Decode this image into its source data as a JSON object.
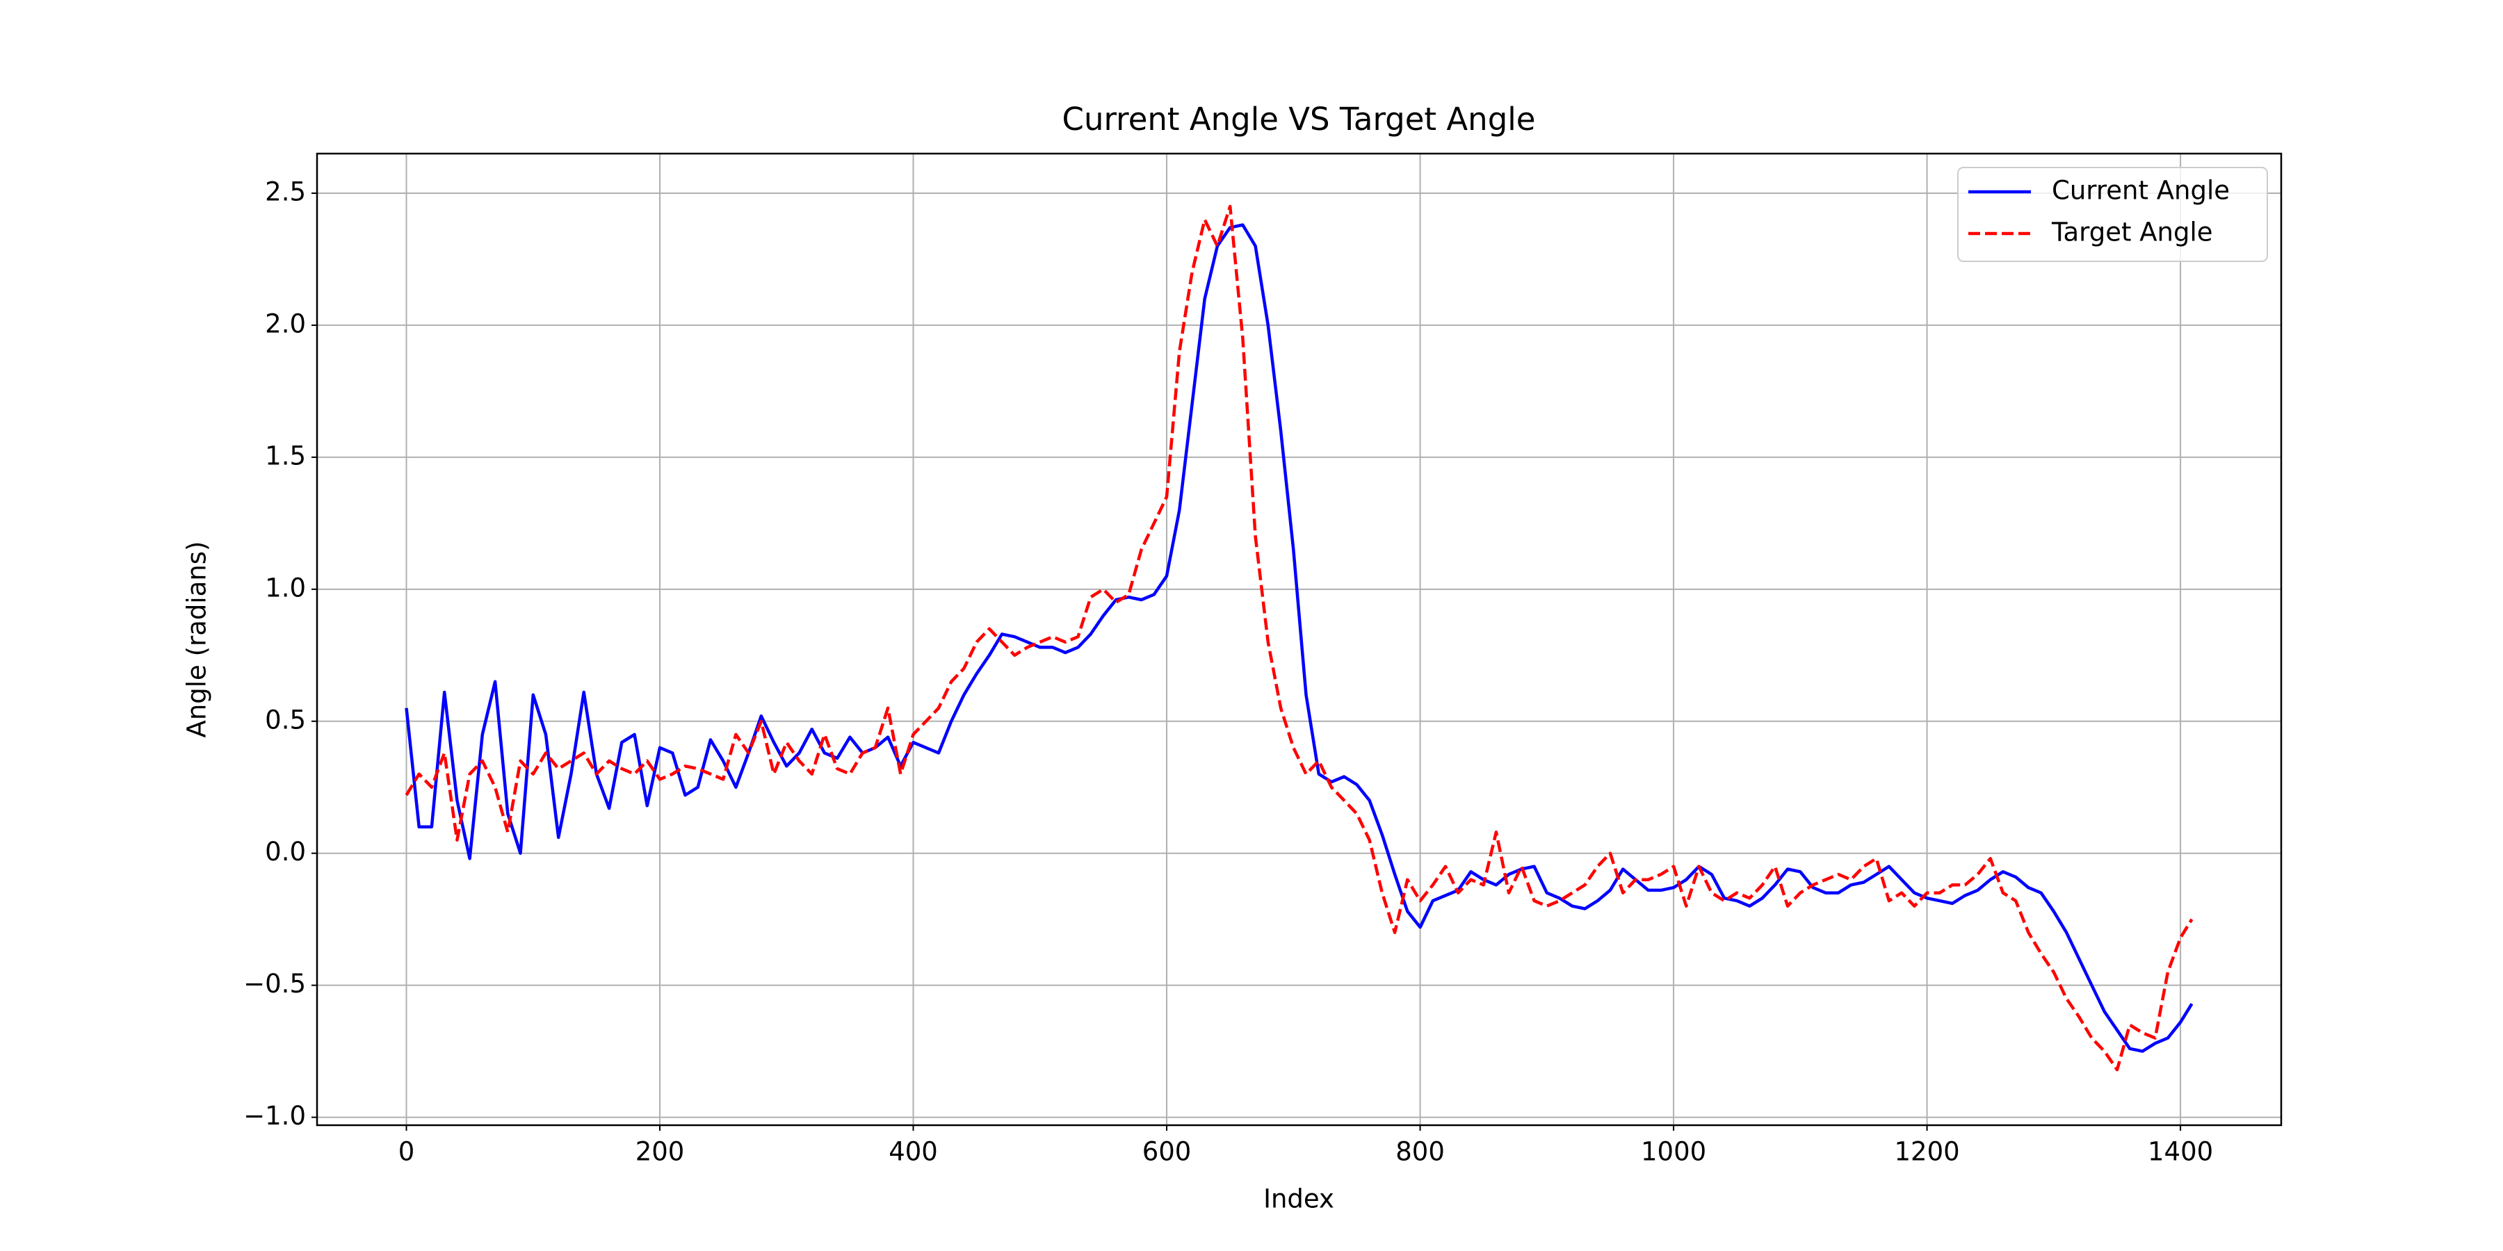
{
  "chart_data": {
    "type": "line",
    "title": "Current Angle VS Target Angle",
    "x_label": "Index",
    "y_label": "Angle (radians)",
    "x": [
      0,
      10,
      20,
      30,
      40,
      50,
      60,
      70,
      80,
      90,
      100,
      110,
      120,
      130,
      140,
      150,
      160,
      170,
      180,
      190,
      200,
      210,
      220,
      230,
      240,
      250,
      260,
      270,
      280,
      290,
      300,
      310,
      320,
      330,
      340,
      350,
      360,
      370,
      380,
      390,
      400,
      410,
      420,
      430,
      440,
      450,
      460,
      470,
      480,
      490,
      500,
      510,
      520,
      530,
      540,
      550,
      560,
      570,
      580,
      590,
      600,
      610,
      620,
      630,
      640,
      650,
      660,
      670,
      680,
      690,
      700,
      710,
      720,
      730,
      740,
      750,
      760,
      770,
      780,
      790,
      800,
      810,
      820,
      830,
      840,
      850,
      860,
      870,
      880,
      890,
      900,
      910,
      920,
      930,
      940,
      950,
      960,
      970,
      980,
      990,
      1000,
      1010,
      1020,
      1030,
      1040,
      1050,
      1060,
      1070,
      1080,
      1090,
      1100,
      1110,
      1120,
      1130,
      1140,
      1150,
      1160,
      1170,
      1180,
      1190,
      1200,
      1210,
      1220,
      1230,
      1240,
      1250,
      1260,
      1270,
      1280,
      1290,
      1300,
      1310,
      1320,
      1330,
      1340,
      1350,
      1360,
      1370,
      1380,
      1390,
      1400,
      1409
    ],
    "series": [
      {
        "name": "Current Angle",
        "color": "#0000ff",
        "dash": "solid",
        "values": [
          0.55,
          0.1,
          0.1,
          0.61,
          0.2,
          -0.02,
          0.45,
          0.65,
          0.15,
          0.0,
          0.6,
          0.45,
          0.06,
          0.3,
          0.61,
          0.3,
          0.17,
          0.42,
          0.45,
          0.18,
          0.4,
          0.38,
          0.22,
          0.25,
          0.43,
          0.35,
          0.25,
          0.38,
          0.52,
          0.42,
          0.33,
          0.38,
          0.47,
          0.38,
          0.36,
          0.44,
          0.38,
          0.4,
          0.44,
          0.33,
          0.42,
          0.4,
          0.38,
          0.5,
          0.6,
          0.68,
          0.75,
          0.83,
          0.82,
          0.8,
          0.78,
          0.78,
          0.76,
          0.78,
          0.83,
          0.9,
          0.96,
          0.97,
          0.96,
          0.98,
          1.05,
          1.3,
          1.7,
          2.1,
          2.3,
          2.37,
          2.38,
          2.3,
          2.0,
          1.6,
          1.15,
          0.6,
          0.3,
          0.27,
          0.29,
          0.26,
          0.2,
          0.07,
          -0.08,
          -0.22,
          -0.28,
          -0.18,
          -0.16,
          -0.14,
          -0.07,
          -0.1,
          -0.12,
          -0.08,
          -0.06,
          -0.05,
          -0.15,
          -0.17,
          -0.2,
          -0.21,
          -0.18,
          -0.14,
          -0.06,
          -0.1,
          -0.14,
          -0.14,
          -0.13,
          -0.1,
          -0.05,
          -0.08,
          -0.17,
          -0.18,
          -0.2,
          -0.17,
          -0.12,
          -0.06,
          -0.07,
          -0.13,
          -0.15,
          -0.15,
          -0.12,
          -0.11,
          -0.08,
          -0.05,
          -0.1,
          -0.15,
          -0.17,
          -0.18,
          -0.19,
          -0.16,
          -0.14,
          -0.1,
          -0.07,
          -0.09,
          -0.13,
          -0.15,
          -0.22,
          -0.3,
          -0.4,
          -0.5,
          -0.6,
          -0.67,
          -0.74,
          -0.75,
          -0.72,
          -0.7,
          -0.64,
          -0.57
        ]
      },
      {
        "name": "Target Angle",
        "color": "#ff0000",
        "dash": "dashed",
        "values": [
          0.22,
          0.3,
          0.25,
          0.38,
          0.05,
          0.3,
          0.35,
          0.25,
          0.08,
          0.35,
          0.3,
          0.38,
          0.32,
          0.35,
          0.38,
          0.3,
          0.35,
          0.32,
          0.3,
          0.35,
          0.28,
          0.3,
          0.33,
          0.32,
          0.3,
          0.28,
          0.45,
          0.38,
          0.5,
          0.3,
          0.42,
          0.35,
          0.3,
          0.45,
          0.32,
          0.3,
          0.38,
          0.4,
          0.55,
          0.3,
          0.45,
          0.5,
          0.55,
          0.65,
          0.7,
          0.8,
          0.85,
          0.8,
          0.75,
          0.78,
          0.8,
          0.82,
          0.8,
          0.82,
          0.97,
          1.0,
          0.95,
          0.98,
          1.15,
          1.25,
          1.35,
          1.9,
          2.2,
          2.4,
          2.3,
          2.45,
          1.95,
          1.2,
          0.8,
          0.55,
          0.4,
          0.3,
          0.35,
          0.25,
          0.2,
          0.15,
          0.05,
          -0.15,
          -0.3,
          -0.1,
          -0.18,
          -0.12,
          -0.05,
          -0.15,
          -0.1,
          -0.12,
          0.08,
          -0.15,
          -0.05,
          -0.18,
          -0.2,
          -0.18,
          -0.15,
          -0.12,
          -0.05,
          0.0,
          -0.15,
          -0.1,
          -0.1,
          -0.08,
          -0.05,
          -0.2,
          -0.05,
          -0.15,
          -0.18,
          -0.15,
          -0.17,
          -0.12,
          -0.05,
          -0.2,
          -0.15,
          -0.12,
          -0.1,
          -0.08,
          -0.1,
          -0.05,
          -0.02,
          -0.18,
          -0.15,
          -0.2,
          -0.15,
          -0.15,
          -0.12,
          -0.12,
          -0.08,
          -0.02,
          -0.15,
          -0.18,
          -0.3,
          -0.38,
          -0.45,
          -0.55,
          -0.62,
          -0.7,
          -0.75,
          -0.82,
          -0.65,
          -0.68,
          -0.7,
          -0.45,
          -0.32,
          -0.25
        ]
      }
    ],
    "xlim": [
      -70.5,
      1479.5
    ],
    "ylim": [
      -1.03,
      2.65
    ],
    "xticks": [
      0,
      200,
      400,
      600,
      800,
      1000,
      1200,
      1400
    ],
    "yticks": [
      {
        "value": -1.0,
        "label": "−1.0"
      },
      {
        "value": -0.5,
        "label": "−0.5"
      },
      {
        "value": 0.0,
        "label": "0.0"
      },
      0.5,
      {
        "value": 1.0,
        "label": "1.0"
      },
      1.5,
      {
        "value": 2.0,
        "label": "2.0"
      },
      2.5
    ],
    "grid": true,
    "legend": "upper right"
  }
}
